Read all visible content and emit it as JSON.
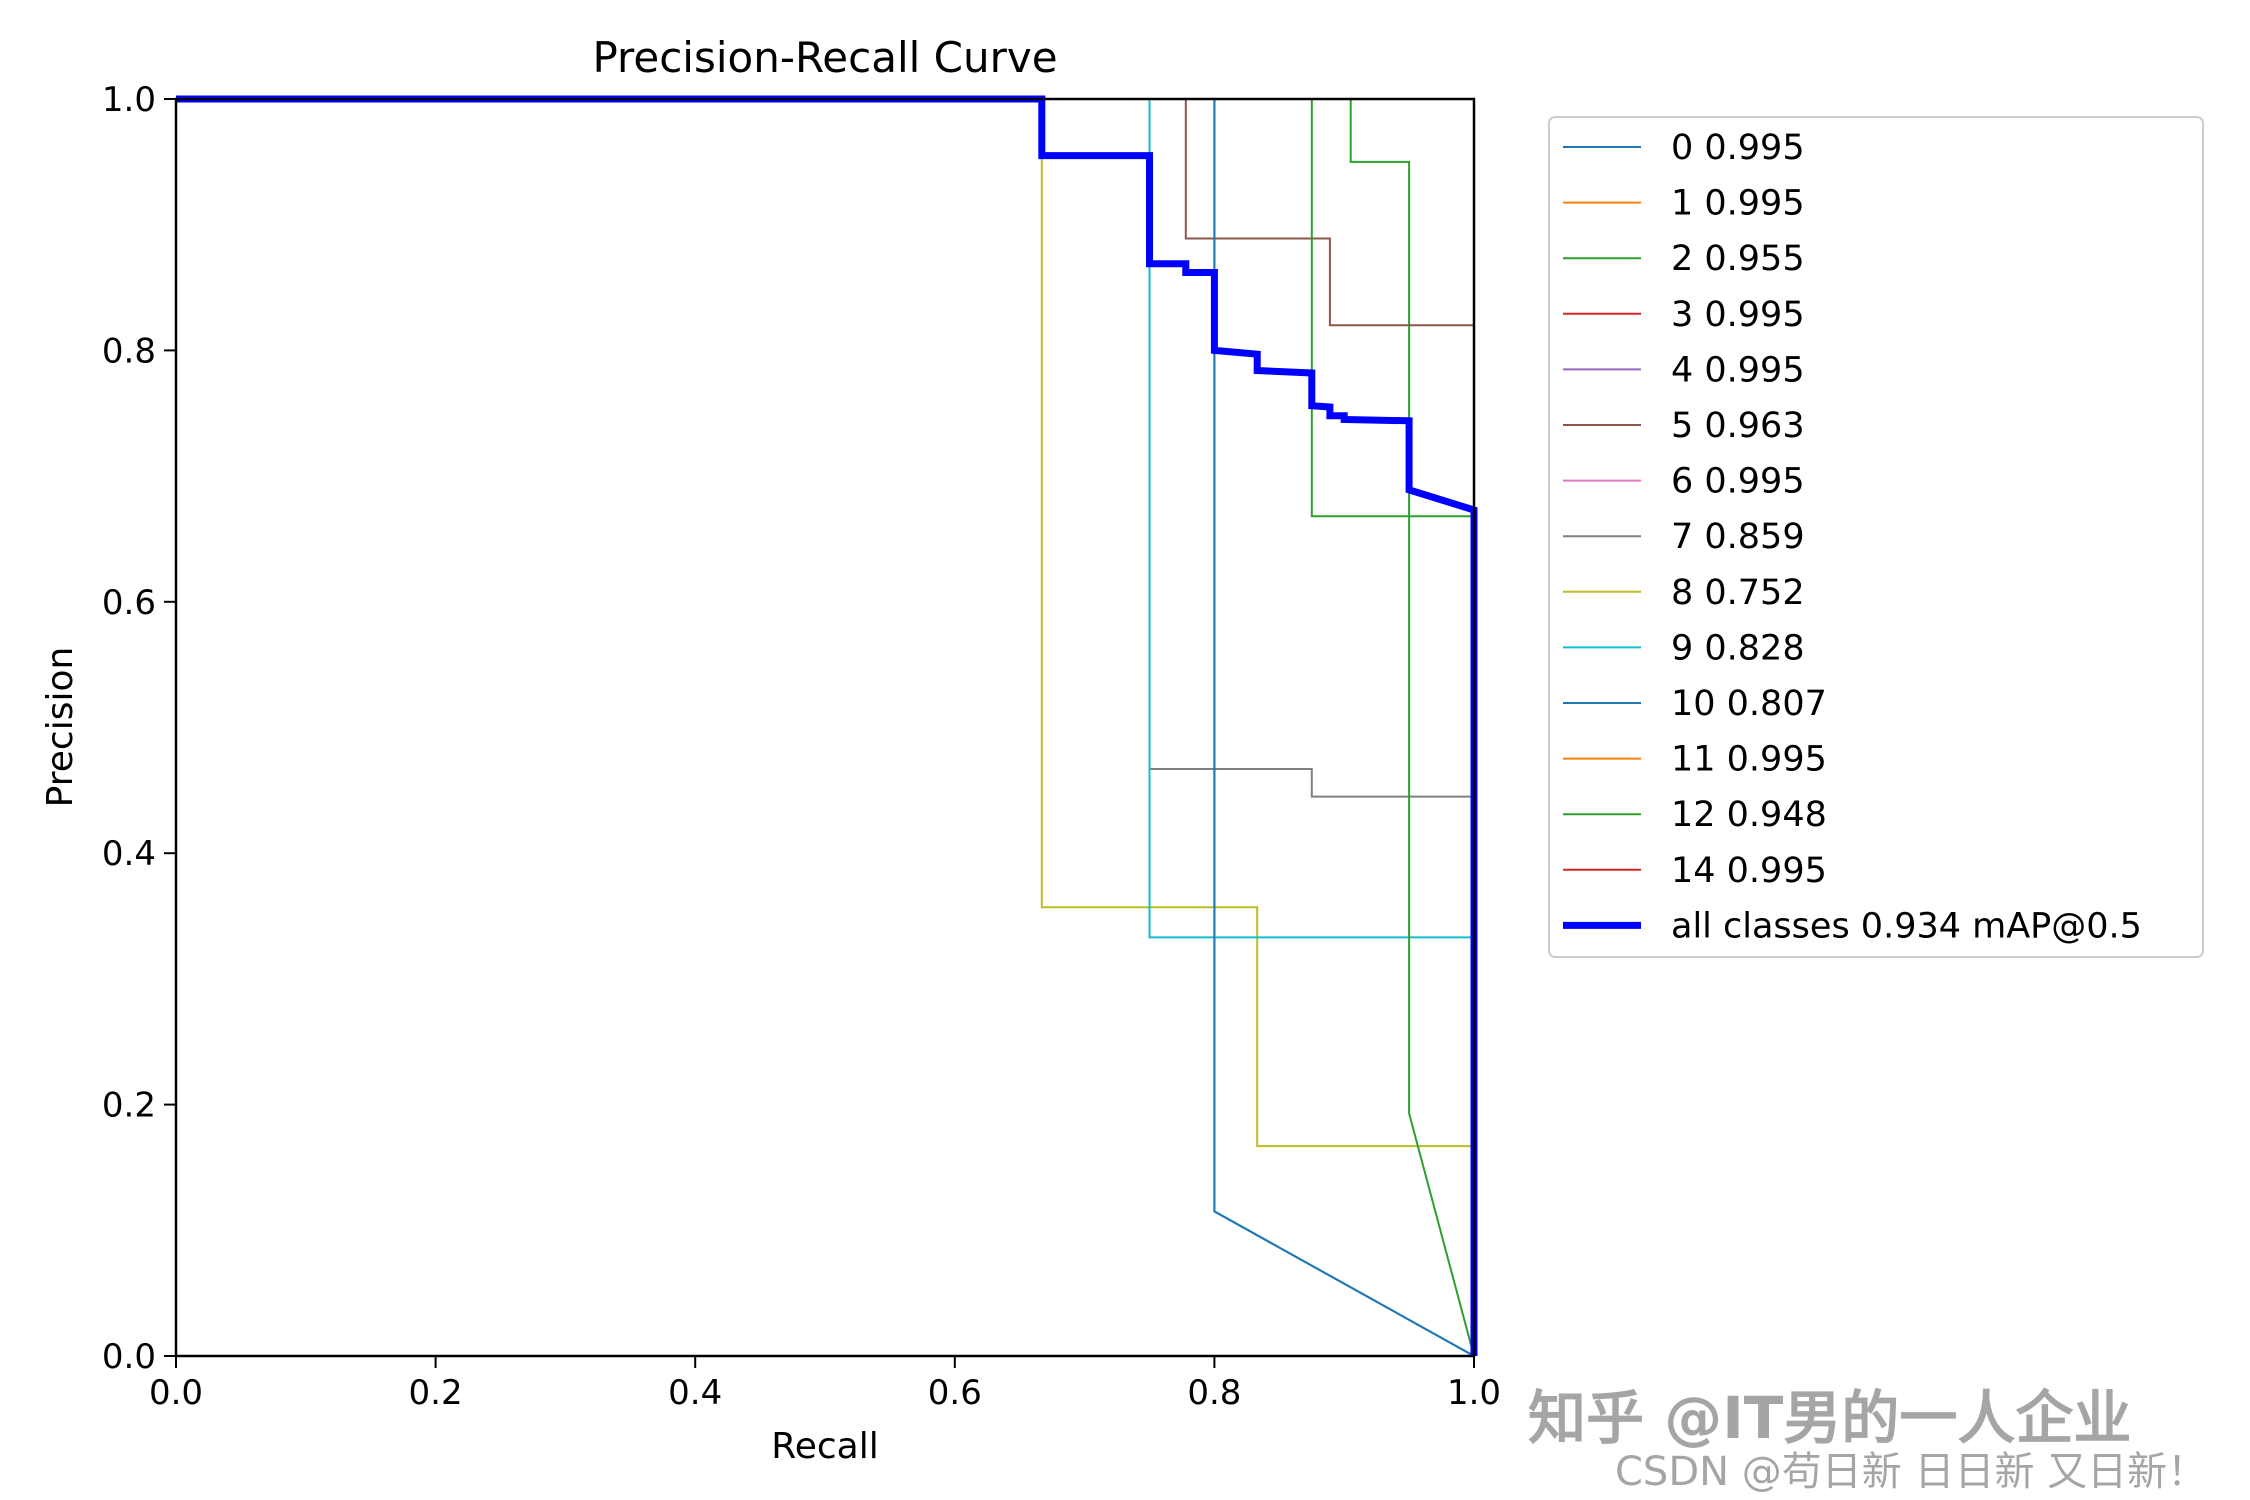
{
  "chart_data": {
    "type": "line",
    "title": "Precision-Recall Curve",
    "xlabel": "Recall",
    "ylabel": "Precision",
    "xlim": [
      0,
      1
    ],
    "ylim": [
      0,
      1
    ],
    "xticks": [
      "0.0",
      "0.2",
      "0.4",
      "0.6",
      "0.8",
      "1.0"
    ],
    "yticks": [
      "0.0",
      "0.2",
      "0.4",
      "0.6",
      "0.8",
      "1.0"
    ],
    "grid": false,
    "legend_position": "outside-right",
    "series": [
      {
        "name": "0 0.995",
        "color": "#1f77b4",
        "width": 2,
        "x": [
          0,
          0.8,
          0.8,
          0.8,
          1.0
        ],
        "y": [
          1,
          1,
          1,
          0.115,
          0
        ]
      },
      {
        "name": "1 0.995",
        "color": "#ff7f0e",
        "width": 2,
        "x": [
          0,
          1.0,
          1.0
        ],
        "y": [
          1,
          1,
          0
        ]
      },
      {
        "name": "2 0.955",
        "color": "#2ca02c",
        "width": 2,
        "x": [
          0,
          0.905,
          0.905,
          0.95,
          0.95,
          1.0,
          1.0
        ],
        "y": [
          1,
          1,
          0.95,
          0.95,
          0.668,
          0.668,
          0
        ]
      },
      {
        "name": "3 0.995",
        "color": "#d62728",
        "width": 2,
        "x": [
          0,
          1.0,
          1.0
        ],
        "y": [
          1,
          1,
          0
        ]
      },
      {
        "name": "4 0.995",
        "color": "#9467bd",
        "width": 2,
        "x": [
          0,
          1.0,
          1.0
        ],
        "y": [
          1,
          1,
          0
        ]
      },
      {
        "name": "5 0.963",
        "color": "#8c564b",
        "width": 2,
        "x": [
          0,
          0.778,
          0.778,
          0.889,
          0.889,
          1.0,
          1.0
        ],
        "y": [
          1,
          1,
          0.889,
          0.889,
          0.82,
          0.82,
          0
        ]
      },
      {
        "name": "6 0.995",
        "color": "#e377c2",
        "width": 2,
        "x": [
          0,
          1.0,
          1.0
        ],
        "y": [
          1,
          1,
          0
        ]
      },
      {
        "name": "7 0.859",
        "color": "#7f7f7f",
        "width": 2,
        "x": [
          0,
          0.75,
          0.75,
          0.875,
          0.875,
          1.0,
          1.0
        ],
        "y": [
          1,
          1,
          0.467,
          0.467,
          0.445,
          0.445,
          0
        ]
      },
      {
        "name": "8 0.752",
        "color": "#bcbd22",
        "width": 2,
        "x": [
          0,
          0.667,
          0.667,
          0.833,
          0.833,
          1.0,
          1.0
        ],
        "y": [
          1,
          1,
          0.357,
          0.357,
          0.167,
          0.167,
          0
        ]
      },
      {
        "name": "9 0.828",
        "color": "#17becf",
        "width": 2,
        "x": [
          0,
          0.75,
          0.75,
          1.0,
          1.0
        ],
        "y": [
          1,
          1,
          0.333,
          0.333,
          0
        ]
      },
      {
        "name": "10 0.807",
        "color": "#1f77b4",
        "width": 2,
        "x": [
          0,
          0.8,
          0.8,
          1.0
        ],
        "y": [
          1,
          1,
          0.115,
          0
        ]
      },
      {
        "name": "11 0.995",
        "color": "#ff7f0e",
        "width": 2,
        "x": [
          0,
          1.0,
          1.0
        ],
        "y": [
          1,
          1,
          0
        ]
      },
      {
        "name": "12 0.948",
        "color": "#2ca02c",
        "width": 2,
        "x": [
          0,
          0.875,
          0.875,
          0.95,
          0.95,
          1.0
        ],
        "y": [
          1,
          1,
          0.668,
          0.668,
          0.193,
          0
        ]
      },
      {
        "name": "14 0.995",
        "color": "#d62728",
        "width": 2,
        "x": [
          0,
          1.0,
          1.0
        ],
        "y": [
          1,
          1,
          0
        ]
      },
      {
        "name": "all classes 0.934 mAP@0.5",
        "color": "#0000ff",
        "width": 7,
        "x": [
          0,
          0.667,
          0.667,
          0.75,
          0.75,
          0.778,
          0.778,
          0.8,
          0.8,
          0.833,
          0.833,
          0.875,
          0.875,
          0.889,
          0.889,
          0.9,
          0.9,
          0.95,
          0.95,
          1.0,
          1.0
        ],
        "y": [
          1,
          1,
          0.955,
          0.955,
          0.869,
          0.869,
          0.862,
          0.862,
          0.8,
          0.797,
          0.784,
          0.782,
          0.756,
          0.755,
          0.748,
          0.748,
          0.745,
          0.744,
          0.689,
          0.673,
          0
        ]
      }
    ]
  },
  "watermark": {
    "line1": "知乎 @IT男的一人企业",
    "line2": "CSDN @苟日新 日日新 又日新！"
  }
}
